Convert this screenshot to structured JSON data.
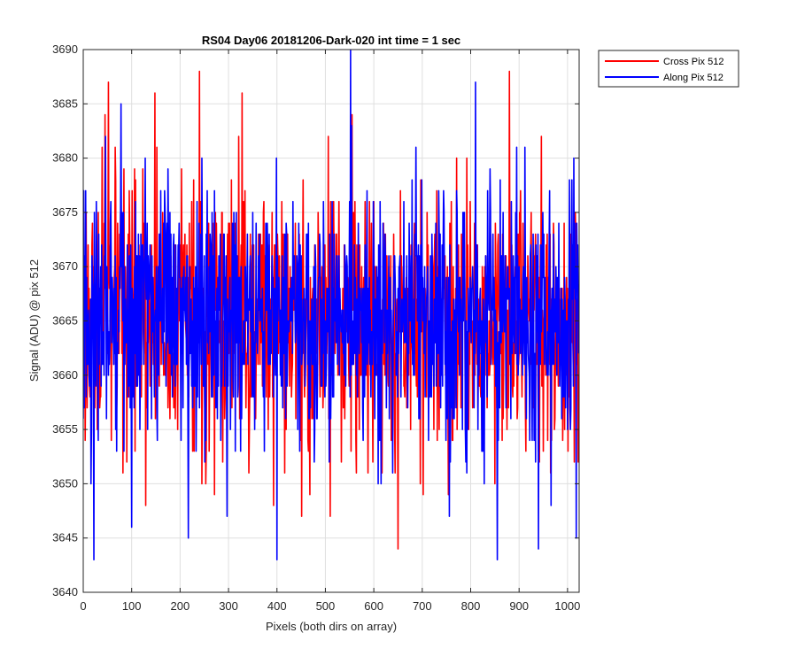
{
  "chart_data": {
    "type": "line",
    "title": "RS04 Day06 20181206-Dark-020 int time = 1 sec",
    "xlabel": "Pixels (both dirs on array)",
    "ylabel": "Signal (ADU) @ pix 512",
    "xlim": [
      0,
      1024
    ],
    "ylim": [
      3640,
      3690
    ],
    "xticks": [
      0,
      100,
      200,
      300,
      400,
      500,
      600,
      700,
      800,
      900,
      1000
    ],
    "yticks": [
      3640,
      3645,
      3650,
      3655,
      3660,
      3665,
      3670,
      3675,
      3680,
      3685,
      3690
    ],
    "grid": true,
    "legend_position": "outside-top-right",
    "noise_model": {
      "mean": 3665,
      "std": 6,
      "n_points": 1024
    },
    "series": [
      {
        "name": "Cross Pix 512",
        "color": "#ff0000",
        "seed": 17,
        "min": 3644,
        "max": 3688,
        "notable_points": [
          [
            45,
            3684
          ],
          [
            52,
            3687
          ],
          [
            148,
            3686
          ],
          [
            240,
            3688
          ],
          [
            328,
            3686
          ],
          [
            555,
            3684
          ],
          [
            650,
            3644
          ],
          [
            880,
            3688
          ]
        ]
      },
      {
        "name": "Along Pix 512",
        "color": "#0000ff",
        "seed": 91,
        "min": 3643,
        "max": 3690,
        "notable_points": [
          [
            22,
            3643
          ],
          [
            78,
            3685
          ],
          [
            217,
            3645
          ],
          [
            400,
            3643
          ],
          [
            552,
            3690
          ],
          [
            810,
            3687
          ],
          [
            855,
            3643
          ],
          [
            940,
            3644
          ],
          [
            1018,
            3645
          ]
        ]
      }
    ]
  }
}
